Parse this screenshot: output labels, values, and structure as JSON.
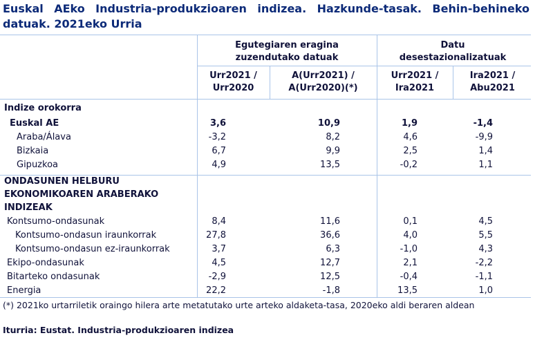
{
  "title": "Euskal AEko Industria-produkzioaren indizea. Hazkunde-tasak. Behin-behineko datuak. 2021eko Urria",
  "header": {
    "groups": [
      "Egutegiaren eragina zuzendutako datuak",
      "Datu desestazionalizatuak"
    ],
    "columns": [
      "Urr2021 / Urr2020",
      "A(Urr2021) / A(Urr2020)(*)",
      "Urr2021 / Ira2021",
      "Ira2021 / Abu2021"
    ]
  },
  "sections": [
    {
      "title": "Indize orokorra",
      "rows": [
        {
          "label": "Euskal AE",
          "values": [
            "3,6",
            "10,9",
            "1,9",
            "-1,4"
          ],
          "children": [
            {
              "label": "Araba/Álava",
              "values": [
                "-3,2",
                "8,2",
                "4,6",
                "-9,9"
              ]
            },
            {
              "label": "Bizkaia",
              "values": [
                "6,7",
                "9,9",
                "2,5",
                "1,4"
              ]
            },
            {
              "label": "Gipuzkoa",
              "values": [
                "4,9",
                "13,5",
                "-0,2",
                "1,1"
              ]
            }
          ]
        }
      ]
    },
    {
      "title": "ONDASUNEN HELBURU EKONOMIKOAREN ARABERAKO INDIZEAK",
      "rows": [
        {
          "label": "Kontsumo-ondasunak",
          "values": [
            "8,4",
            "11,6",
            "0,1",
            "4,5"
          ],
          "children": [
            {
              "label": "Kontsumo-ondasun iraunkorrak",
              "values": [
                "27,8",
                "36,6",
                "4,0",
                "5,5"
              ]
            },
            {
              "label": "Kontsumo-ondasun ez-iraunkorrak",
              "values": [
                "3,7",
                "6,3",
                "-1,0",
                "4,3"
              ]
            }
          ]
        },
        {
          "label": "Ekipo-ondasunak",
          "values": [
            "4,5",
            "12,7",
            "2,1",
            "-2,2"
          ]
        },
        {
          "label": "Bitarteko ondasunak",
          "values": [
            "-2,9",
            "12,5",
            "-0,4",
            "-1,1"
          ]
        },
        {
          "label": "Energia",
          "values": [
            "22,2",
            "-1,8",
            "13,5",
            "1,0"
          ]
        }
      ]
    }
  ],
  "footnote": "(*) 2021ko urtarriletik oraingo hilera arte metatutako urte arteko aldaketa-tasa, 2020eko aldi beraren aldean",
  "source": "Iturria: Eustat. Industria-produkzioaren indizea"
}
